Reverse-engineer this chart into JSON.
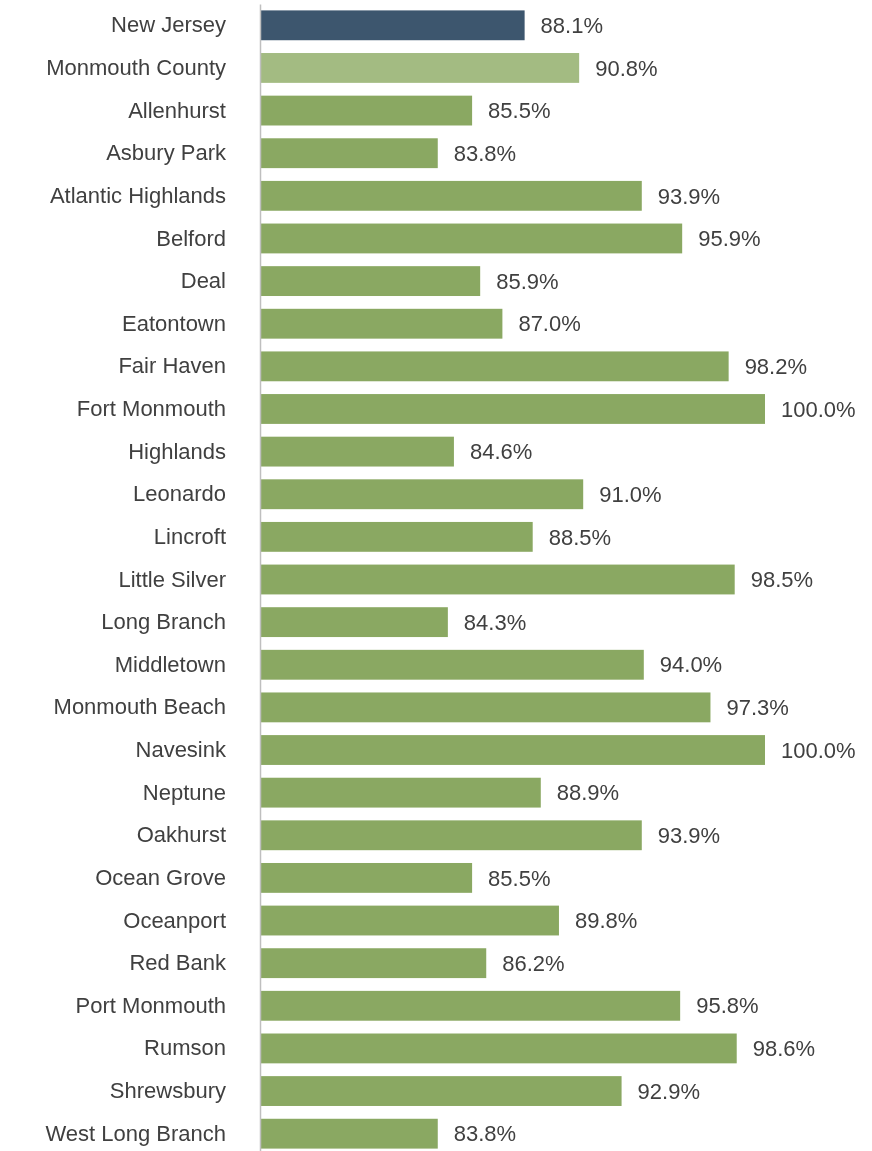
{
  "chart_data": {
    "type": "bar",
    "orientation": "horizontal",
    "tick_labels": "y",
    "xlim": [
      75,
      100
    ],
    "categories": [
      "New Jersey",
      "Monmouth County",
      "Allenhurst",
      "Asbury Park",
      "Atlantic Highlands",
      "Belford",
      "Deal",
      "Eatontown",
      "Fair Haven",
      "Fort Monmouth",
      "Highlands",
      "Leonardo",
      "Lincroft",
      "Little Silver",
      "Long Branch",
      "Middletown",
      "Monmouth Beach",
      "Navesink",
      "Neptune",
      "Oakhurst",
      "Ocean Grove",
      "Oceanport",
      "Red Bank",
      "Port Monmouth",
      "Rumson",
      "Shrewsbury",
      "West Long Branch"
    ],
    "values": [
      88.1,
      90.8,
      85.5,
      83.8,
      93.9,
      95.9,
      85.9,
      87.0,
      98.2,
      100.0,
      84.6,
      91.0,
      88.5,
      98.5,
      84.3,
      94.0,
      97.3,
      100.0,
      88.9,
      93.9,
      85.5,
      89.8,
      86.2,
      95.8,
      98.6,
      92.9,
      83.8
    ],
    "value_labels": [
      "88.1%",
      "90.8%",
      "85.5%",
      "83.8%",
      "93.9%",
      "95.9%",
      "85.9%",
      "87.0%",
      "98.2%",
      "100.0%",
      "84.6%",
      "91.0%",
      "88.5%",
      "98.5%",
      "84.3%",
      "94.0%",
      "97.3%",
      "100.0%",
      "88.9%",
      "93.9%",
      "85.5%",
      "89.8%",
      "86.2%",
      "95.8%",
      "98.6%",
      "92.9%",
      "83.8%"
    ],
    "colors": [
      "#3d566e",
      "#a3bb82",
      "#8aa862",
      "#8aa862",
      "#8aa862",
      "#8aa862",
      "#8aa862",
      "#8aa862",
      "#8aa862",
      "#8aa862",
      "#8aa862",
      "#8aa862",
      "#8aa862",
      "#8aa862",
      "#8aa862",
      "#8aa862",
      "#8aa862",
      "#8aa862",
      "#8aa862",
      "#8aa862",
      "#8aa862",
      "#8aa862",
      "#8aa862",
      "#8aa862",
      "#8aa862",
      "#8aa862",
      "#8aa862"
    ]
  }
}
